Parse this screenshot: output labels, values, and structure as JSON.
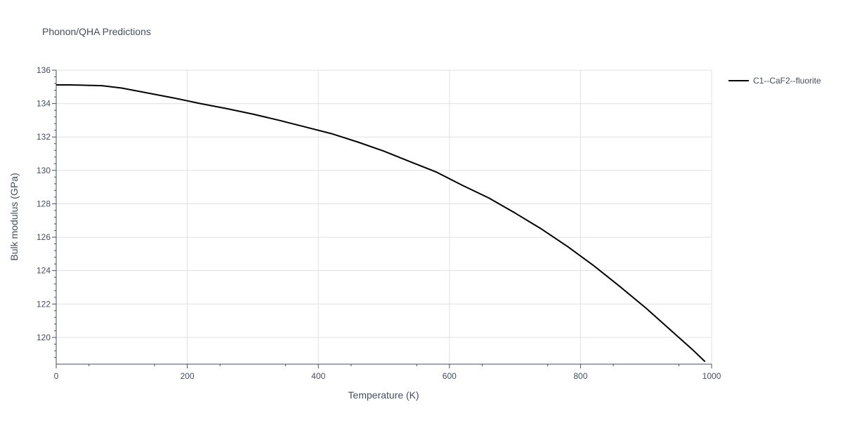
{
  "chart_data": {
    "type": "line",
    "title": "Phonon/QHA Predictions",
    "xlabel": "Temperature (K)",
    "ylabel": "Bulk modulus (GPa)",
    "xlim": [
      0,
      1000
    ],
    "ylim": [
      118.4,
      136
    ],
    "x_ticks": [
      0,
      200,
      400,
      600,
      800,
      1000
    ],
    "y_ticks": [
      120,
      122,
      124,
      126,
      128,
      130,
      132,
      134,
      136
    ],
    "grid": true,
    "legend_position": "top-right",
    "series": [
      {
        "name": "C1--CaF2--fluorite",
        "color": "#000000",
        "x": [
          0,
          20,
          40,
          70,
          100,
          140,
          180,
          220,
          260,
          300,
          340,
          380,
          420,
          460,
          500,
          540,
          580,
          620,
          660,
          700,
          740,
          780,
          820,
          860,
          900,
          940,
          970,
          990
        ],
        "y": [
          135.12,
          135.12,
          135.1,
          135.07,
          134.93,
          134.63,
          134.33,
          134.0,
          133.7,
          133.37,
          133.0,
          132.6,
          132.2,
          131.7,
          131.15,
          130.52,
          129.9,
          129.1,
          128.35,
          127.45,
          126.5,
          125.45,
          124.3,
          123.05,
          121.75,
          120.35,
          119.3,
          118.55
        ]
      }
    ]
  }
}
